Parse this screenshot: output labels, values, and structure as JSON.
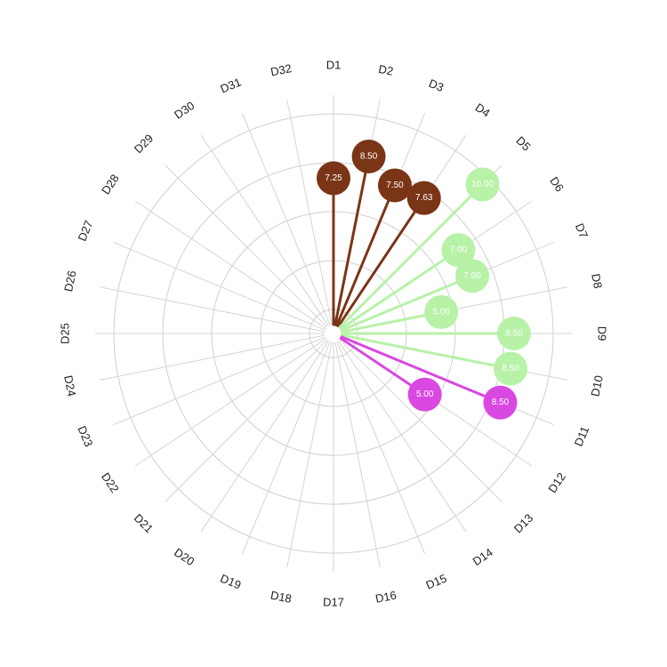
{
  "chart_data": {
    "type": "radial-lollipop",
    "title": "",
    "categories": [
      "D1",
      "D2",
      "D3",
      "D4",
      "D5",
      "D6",
      "D7",
      "D8",
      "D9",
      "D10",
      "D11",
      "D12",
      "D13",
      "D14",
      "D15",
      "D16",
      "D17",
      "D18",
      "D19",
      "D20",
      "D21",
      "D22",
      "D23",
      "D24",
      "D25",
      "D26",
      "D27",
      "D28",
      "D29",
      "D30",
      "D31",
      "D32"
    ],
    "rlim": [
      0,
      10
    ],
    "grid": true,
    "series": [
      {
        "color": "#7a3516",
        "label_color": "#ffffff",
        "points": [
          {
            "category": "D1",
            "value": 7.25,
            "label": "7.25"
          },
          {
            "category": "D2",
            "value": 8.5,
            "label": "8.50"
          },
          {
            "category": "D3",
            "value": 7.5,
            "label": "7.50"
          },
          {
            "category": "D4",
            "value": 7.63,
            "label": "7.63"
          }
        ]
      },
      {
        "color": "#b7f2a7",
        "label_color": "#ffffff",
        "points": [
          {
            "category": "D5",
            "value": 10.0,
            "label": "10.00"
          },
          {
            "category": "D6",
            "value": 7.0,
            "label": "7.00"
          },
          {
            "category": "D7",
            "value": 7.0,
            "label": "7.00"
          },
          {
            "category": "D8",
            "value": 5.0,
            "label": "5.00"
          },
          {
            "category": "D9",
            "value": 8.5,
            "label": "8.50"
          },
          {
            "category": "D10",
            "value": 8.5,
            "label": "8.50"
          }
        ]
      },
      {
        "color": "#d948e0",
        "label_color": "#ffffff",
        "points": [
          {
            "category": "D11",
            "value": 8.5,
            "label": "8.50"
          },
          {
            "category": "D12",
            "value": 5.0,
            "label": "5.00"
          }
        ]
      }
    ]
  }
}
